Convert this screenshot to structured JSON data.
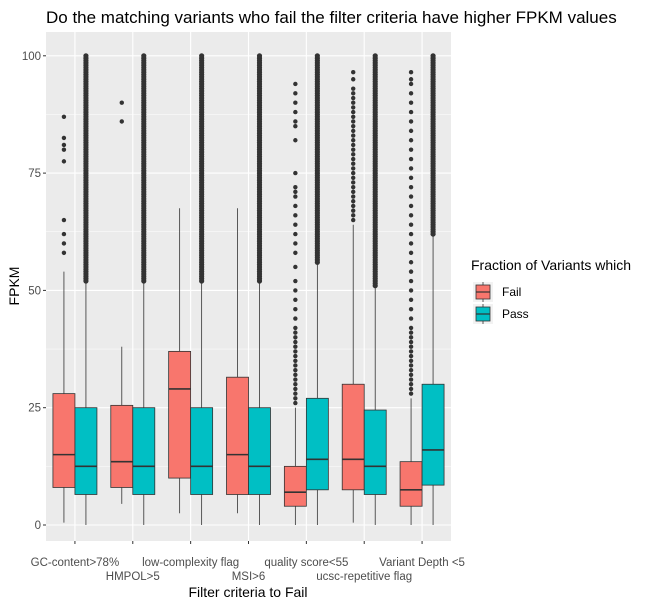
{
  "chart_data": {
    "type": "boxplot",
    "title": "Do the matching variants who fail the filter criteria have higher FPKM values",
    "xlabel": "Filter criteria to Fail",
    "ylabel": "FPKM",
    "ylim": [
      -4,
      105
    ],
    "yticks": [
      0,
      25,
      50,
      75,
      100
    ],
    "categories": [
      "GC-content>78%",
      "HMPOL>5",
      "low-complexity flag",
      "MSI>6",
      "quality score<55",
      "ucsc-repetitive flag",
      "Variant Depth <5"
    ],
    "legend": {
      "title": "Fraction of Variants which",
      "position": "right",
      "entries": [
        "Fail",
        "Pass"
      ]
    },
    "colors": {
      "Fail": "#F8766D",
      "Pass": "#00BFC4",
      "panel": "#EBEBEB",
      "grid": "#FFFFFF",
      "line": "#333333"
    },
    "grid": true,
    "series": [
      {
        "name": "Fail",
        "boxes": [
          {
            "min": 0.5,
            "q1": 8,
            "median": 15,
            "q3": 28,
            "max": 54,
            "outliers": [
              58,
              60,
              62,
              65,
              77.5,
              80,
              81,
              82.5,
              87
            ]
          },
          {
            "min": 4.5,
            "q1": 8,
            "median": 13.5,
            "q3": 25.5,
            "max": 38,
            "outliers": [
              86,
              90
            ]
          },
          {
            "min": 2.5,
            "q1": 10,
            "median": 29,
            "q3": 37,
            "max": 67.5,
            "outliers": []
          },
          {
            "min": 2.5,
            "q1": 6.5,
            "median": 15,
            "q3": 31.5,
            "max": 67.5,
            "outliers": []
          },
          {
            "min": 0,
            "q1": 4,
            "median": 7,
            "q3": 12.5,
            "max": 25,
            "outliers": [
              26,
              27,
              28,
              29,
              30,
              31,
              32,
              33,
              34,
              35,
              36,
              37,
              38,
              39,
              40,
              41,
              42,
              44,
              46,
              48,
              50,
              52,
              55,
              58,
              60,
              62,
              64,
              66,
              68,
              70,
              71,
              72,
              75,
              82,
              85,
              86,
              88,
              90,
              92,
              94
            ]
          },
          {
            "min": 0.5,
            "q1": 7.5,
            "median": 14,
            "q3": 30,
            "max": 64,
            "outliers": [
              65,
              66,
              67,
              68,
              69,
              70,
              71,
              72,
              73,
              74,
              75,
              76,
              77,
              78,
              79,
              80,
              81,
              82,
              83,
              84,
              85,
              86,
              87,
              88,
              89,
              90,
              91,
              92,
              93,
              95,
              96.5
            ]
          },
          {
            "min": 0,
            "q1": 4,
            "median": 7.5,
            "q3": 13.5,
            "max": 27,
            "outliers": [
              28,
              29,
              30,
              31,
              32,
              33,
              34,
              35,
              36,
              37,
              38,
              39,
              40,
              41,
              42,
              44,
              46,
              48,
              50,
              52,
              54,
              56,
              58,
              60,
              62,
              64,
              66,
              68,
              70,
              72,
              74,
              76,
              78,
              80,
              82,
              84,
              86,
              88,
              90,
              92,
              94,
              95,
              96.5
            ]
          }
        ]
      },
      {
        "name": "Pass",
        "boxes": [
          {
            "min": 0,
            "q1": 6.5,
            "median": 12.5,
            "q3": 25,
            "max": 52,
            "outlier_band": [
              52,
              100
            ]
          },
          {
            "min": 0,
            "q1": 6.5,
            "median": 12.5,
            "q3": 25,
            "max": 52,
            "outlier_band": [
              52,
              100
            ]
          },
          {
            "min": 0,
            "q1": 6.5,
            "median": 12.5,
            "q3": 25,
            "max": 52,
            "outlier_band": [
              52,
              100
            ]
          },
          {
            "min": 0,
            "q1": 6.5,
            "median": 12.5,
            "q3": 25,
            "max": 52,
            "outlier_band": [
              52,
              100
            ]
          },
          {
            "min": 0,
            "q1": 7.5,
            "median": 14,
            "q3": 27,
            "max": 56,
            "outlier_band": [
              56,
              100
            ]
          },
          {
            "min": 0,
            "q1": 6.5,
            "median": 12.5,
            "q3": 24.5,
            "max": 51,
            "outlier_band": [
              51,
              100
            ]
          },
          {
            "min": 0,
            "q1": 8.5,
            "median": 16,
            "q3": 30,
            "max": 62,
            "outlier_band": [
              62,
              100
            ]
          }
        ]
      }
    ]
  }
}
